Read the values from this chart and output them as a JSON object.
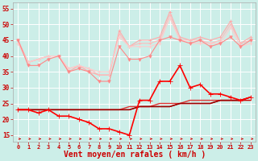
{
  "background_color": "#cceee8",
  "grid_color": "#ffffff",
  "xlabel": "Vent moyen/en rafales ( km/h )",
  "xlabel_color": "#cc0000",
  "xlabel_fontsize": 7,
  "tick_color": "#cc0000",
  "xticks": [
    0,
    1,
    2,
    3,
    4,
    5,
    6,
    7,
    8,
    9,
    10,
    11,
    12,
    13,
    14,
    15,
    16,
    17,
    18,
    19,
    20,
    21,
    22,
    23
  ],
  "yticks": [
    15,
    20,
    25,
    30,
    35,
    40,
    45,
    50,
    55
  ],
  "ylim": [
    13,
    57
  ],
  "xlim": [
    -0.5,
    23.5
  ],
  "series": [
    {
      "color": "#ffaaaa",
      "linewidth": 0.8,
      "marker": "+",
      "markersize": 3,
      "values": [
        45,
        38,
        39,
        40,
        40,
        35,
        37,
        35,
        34,
        34,
        48,
        43,
        45,
        45,
        46,
        54,
        46,
        45,
        46,
        45,
        46,
        51,
        44,
        46
      ]
    },
    {
      "color": "#ffbbbb",
      "linewidth": 0.8,
      "marker": "+",
      "markersize": 3,
      "values": [
        44,
        38,
        39,
        40,
        40,
        36,
        37,
        36,
        34,
        34,
        47,
        43,
        44,
        44,
        45,
        53,
        45,
        45,
        45,
        44,
        45,
        50,
        44,
        45
      ]
    },
    {
      "color": "#ffcccc",
      "linewidth": 0.8,
      "marker": "+",
      "markersize": 3,
      "values": [
        44,
        38,
        39,
        40,
        40,
        36,
        37,
        36,
        35,
        35,
        46,
        43,
        43,
        43,
        44,
        52,
        45,
        44,
        44,
        44,
        44,
        49,
        43,
        44
      ]
    },
    {
      "color": "#ff8888",
      "linewidth": 0.8,
      "marker": "v",
      "markersize": 2.5,
      "values": [
        45,
        37,
        37,
        39,
        40,
        35,
        36,
        35,
        32,
        32,
        43,
        39,
        39,
        40,
        45,
        46,
        45,
        44,
        45,
        43,
        44,
        46,
        43,
        45
      ]
    },
    {
      "color": "#dd3333",
      "linewidth": 1.0,
      "marker": null,
      "markersize": 0,
      "values": [
        23,
        23,
        23,
        23,
        23,
        23,
        23,
        23,
        23,
        23,
        23,
        24,
        24,
        24,
        25,
        25,
        25,
        26,
        26,
        26,
        26,
        26,
        26,
        27
      ]
    },
    {
      "color": "#cc0000",
      "linewidth": 1.0,
      "marker": null,
      "markersize": 0,
      "values": [
        23,
        23,
        23,
        23,
        23,
        23,
        23,
        23,
        23,
        23,
        23,
        23,
        24,
        24,
        24,
        24,
        25,
        25,
        25,
        25,
        26,
        26,
        26,
        26
      ]
    },
    {
      "color": "#990000",
      "linewidth": 1.0,
      "marker": null,
      "markersize": 0,
      "values": [
        23,
        23,
        23,
        23,
        23,
        23,
        23,
        23,
        23,
        23,
        23,
        23,
        24,
        24,
        24,
        24,
        25,
        25,
        25,
        25,
        26,
        26,
        26,
        27
      ]
    },
    {
      "color": "#ff0000",
      "linewidth": 1.2,
      "marker": "+",
      "markersize": 4,
      "values": [
        23,
        23,
        22,
        23,
        21,
        21,
        20,
        19,
        17,
        17,
        16,
        15,
        26,
        26,
        32,
        32,
        37,
        30,
        31,
        28,
        28,
        27,
        26,
        27
      ]
    }
  ],
  "arrows": {
    "color": "#cc0000",
    "y": 13.8
  }
}
